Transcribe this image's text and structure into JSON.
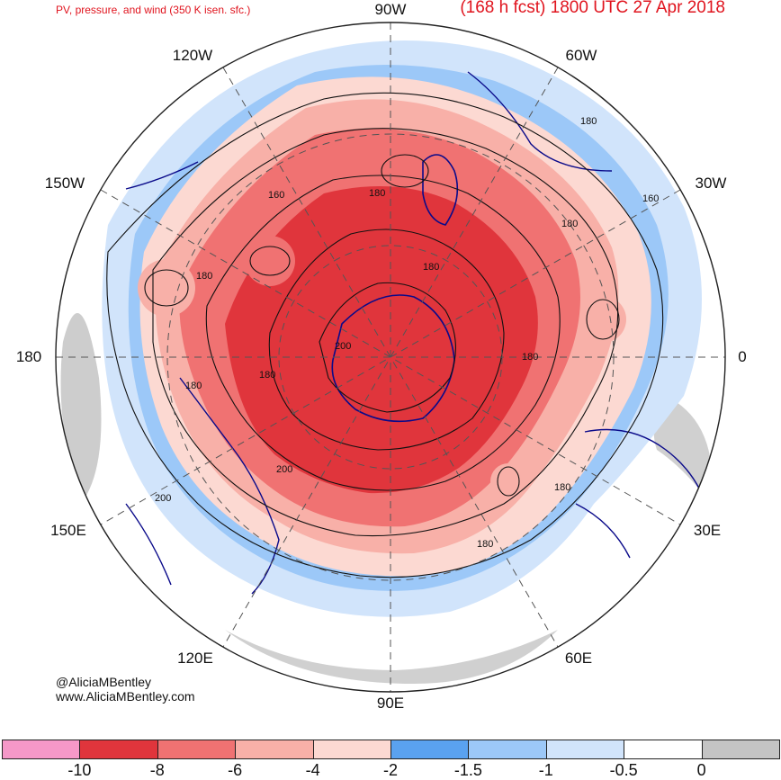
{
  "title": {
    "left": "PV, pressure, and wind (350 K isen. sfc.)",
    "right": "(168 h fcst) 1800 UTC 27 Apr 2018"
  },
  "credits": {
    "twitter": "@AliciaMBentley",
    "website": "www.AliciaMBentley.com"
  },
  "longitude_labels": {
    "n90w": "90W",
    "n120w": "120W",
    "n60w": "60W",
    "n150w": "150W",
    "n30w": "30W",
    "n180": "180",
    "n0": "0",
    "n150e": "150E",
    "n30e": "30E",
    "n120e": "120E",
    "n60e": "60E",
    "n90e": "90E"
  },
  "contour_labels": [
    "160",
    "180",
    "180",
    "160",
    "180",
    "180",
    "180",
    "200",
    "180",
    "180",
    "200",
    "180",
    "200",
    "180",
    "180"
  ],
  "colorbar": {
    "colors": [
      "#f598c8",
      "#e0353c",
      "#f07272",
      "#f8b0a8",
      "#fcd9d2",
      "#5aa2f0",
      "#9cc8f8",
      "#d1e4fb",
      "#ffffff",
      "#c4c4c4"
    ],
    "ticks": [
      "-10",
      "-8",
      "-6",
      "-4",
      "-2",
      "-1.5",
      "-1",
      "-0.5",
      "0"
    ]
  },
  "colors": {
    "deep_red": "#e0353c",
    "mid_red": "#f07272",
    "light_red": "#f8b0a8",
    "pale_red": "#fcd9d2",
    "pale_blue": "#d1e4fb",
    "mid_blue": "#9cc8f8",
    "blue": "#5aa2f0",
    "gray": "#c4c4c4",
    "coast": "#0a0a8a",
    "title": "#e0141e"
  }
}
